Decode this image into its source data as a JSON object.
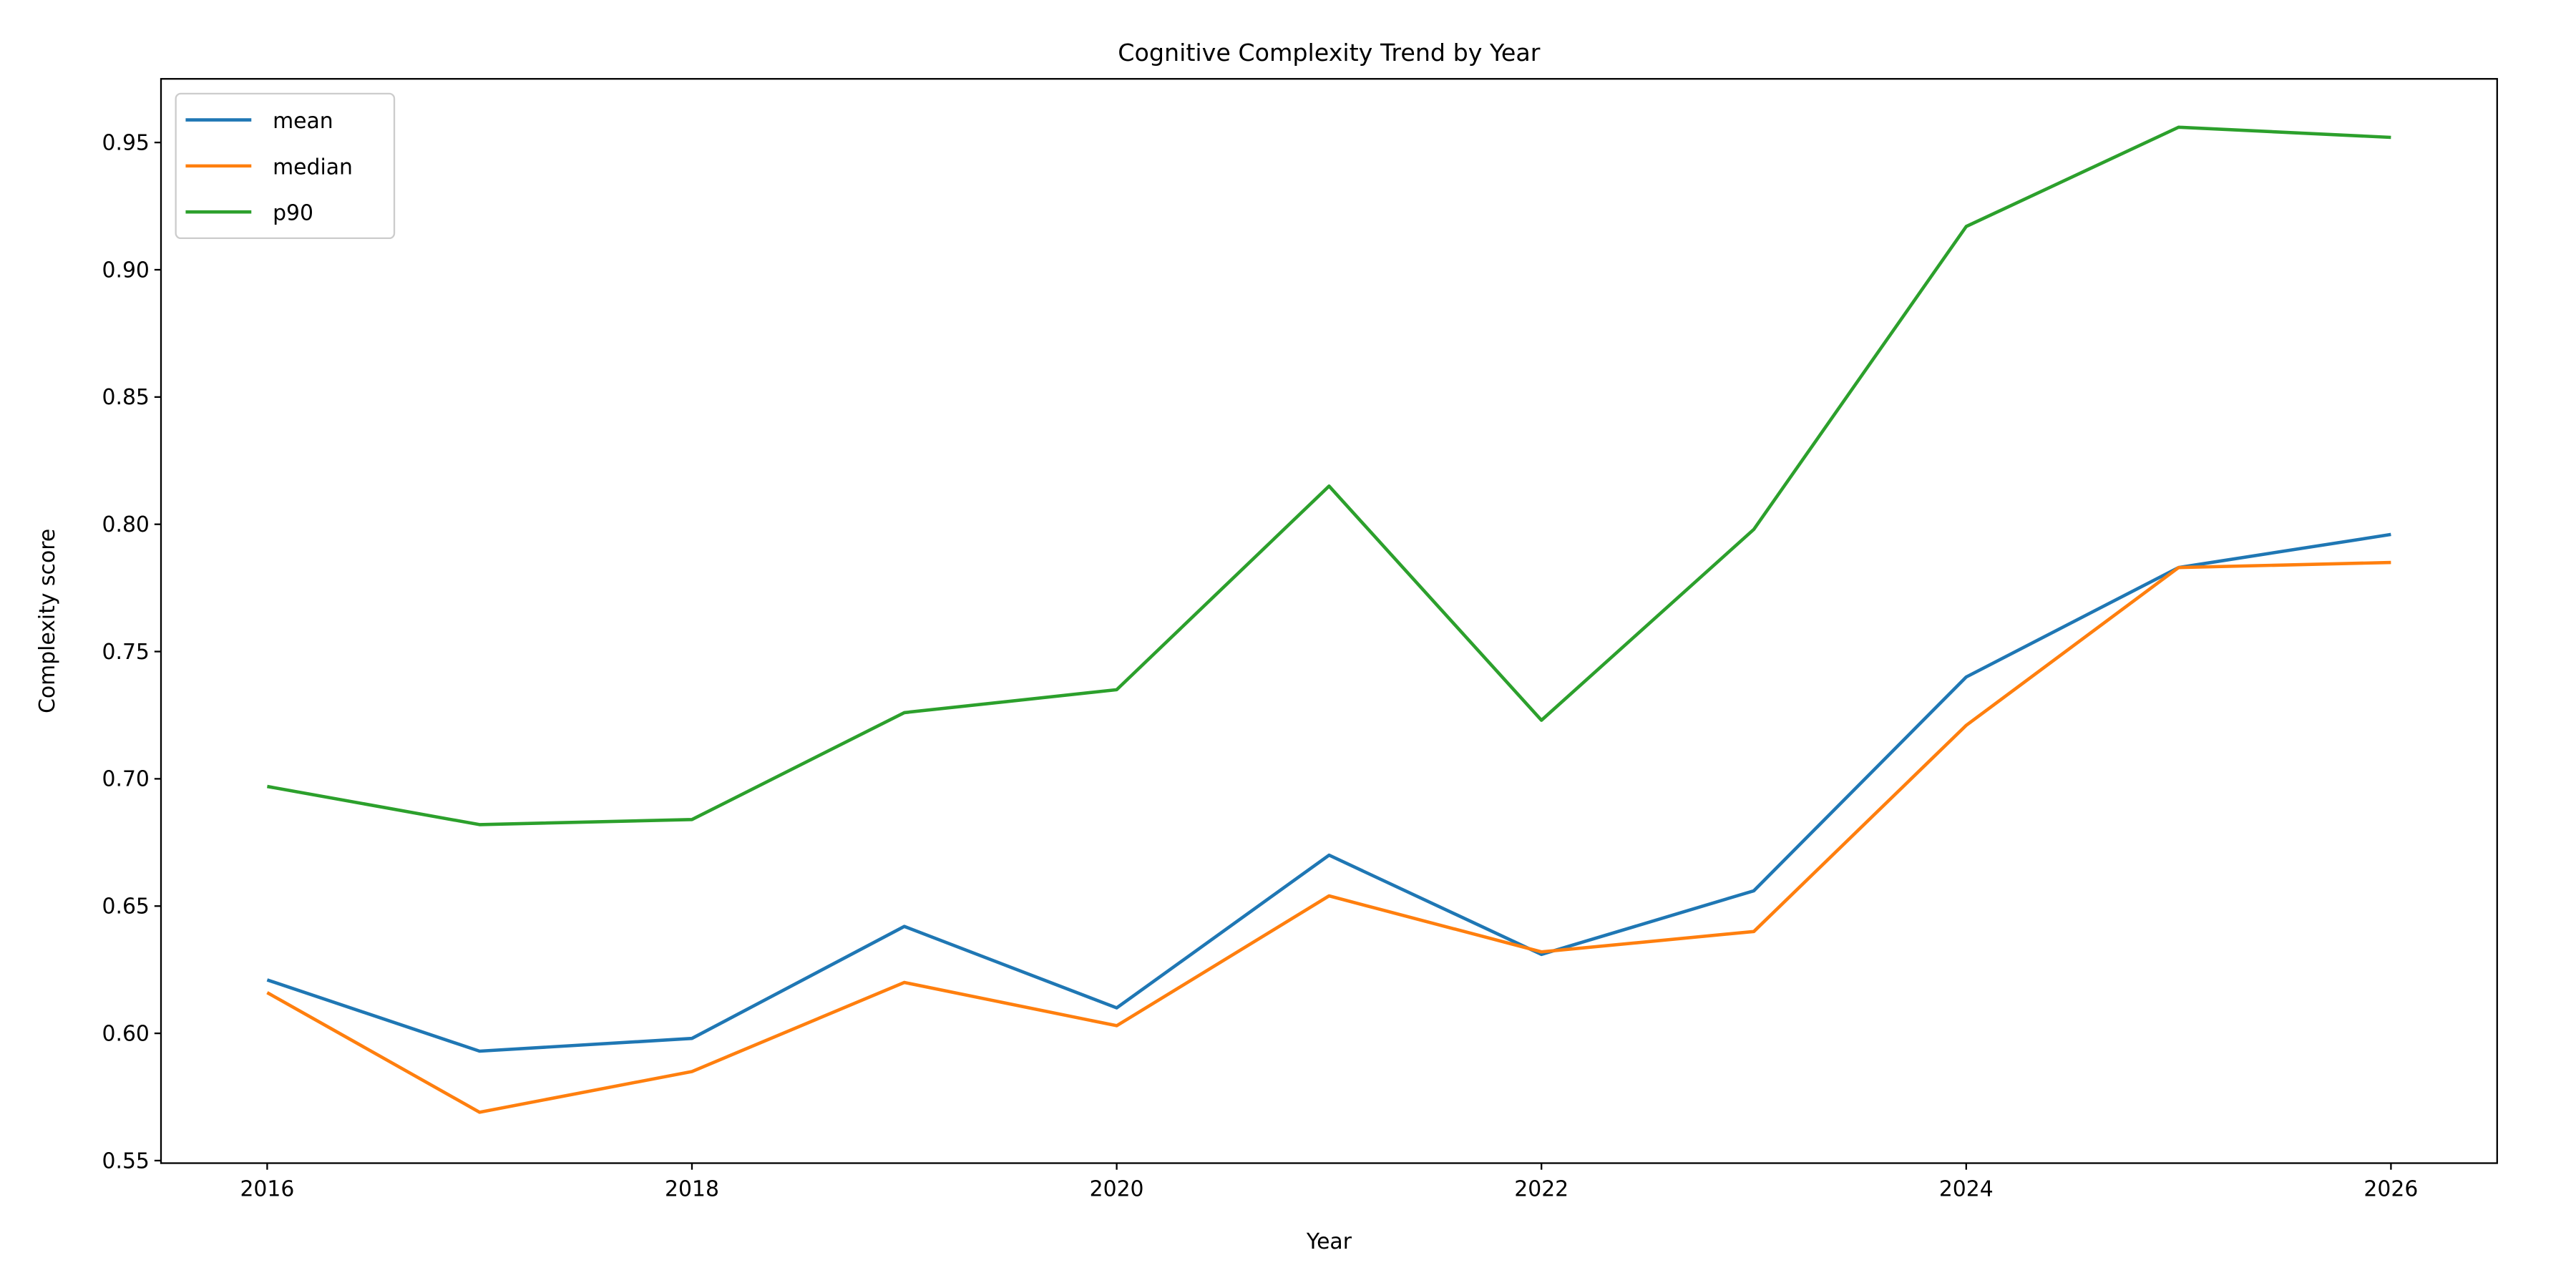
{
  "chart_data": {
    "type": "line",
    "title": "Cognitive Complexity Trend by Year",
    "xlabel": "Year",
    "ylabel": "Complexity score",
    "x": [
      2016,
      2017,
      2018,
      2019,
      2020,
      2021,
      2022,
      2023,
      2024,
      2025,
      2026
    ],
    "xlim": [
      2015.5,
      2026.5
    ],
    "ylim": [
      0.549,
      0.975
    ],
    "xticks": [
      2016,
      2018,
      2020,
      2022,
      2024,
      2026
    ],
    "xtick_labels": [
      "2016",
      "2018",
      "2020",
      "2022",
      "2024",
      "2026"
    ],
    "yticks": [
      0.55,
      0.6,
      0.65,
      0.7,
      0.75,
      0.8,
      0.85,
      0.9,
      0.95
    ],
    "ytick_labels": [
      "0.55",
      "0.60",
      "0.65",
      "0.70",
      "0.75",
      "0.80",
      "0.85",
      "0.90",
      "0.95"
    ],
    "grid": false,
    "legend_position": "top-left",
    "series": [
      {
        "name": "mean",
        "color": "#1f77b4",
        "values": [
          0.621,
          0.593,
          0.598,
          0.642,
          0.61,
          0.67,
          0.631,
          0.656,
          0.74,
          0.783,
          0.796
        ]
      },
      {
        "name": "median",
        "color": "#ff7f0e",
        "values": [
          0.616,
          0.569,
          0.585,
          0.62,
          0.603,
          0.654,
          0.632,
          0.64,
          0.721,
          0.783,
          0.785
        ]
      },
      {
        "name": "p90",
        "color": "#2ca02c",
        "values": [
          0.697,
          0.682,
          0.684,
          0.726,
          0.735,
          0.815,
          0.723,
          0.798,
          0.917,
          0.956,
          0.952
        ]
      }
    ]
  }
}
